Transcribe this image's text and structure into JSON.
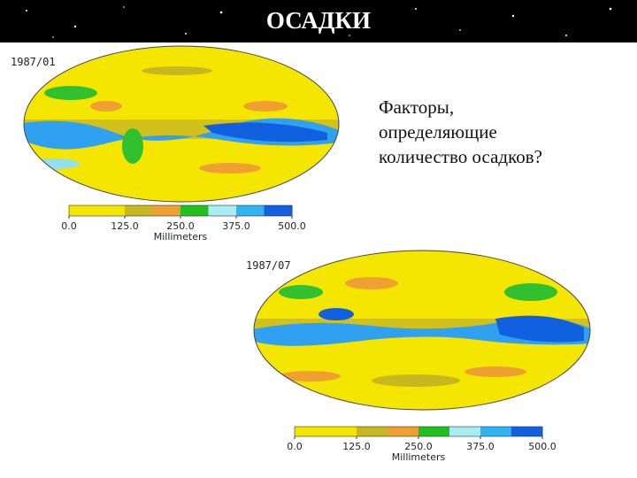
{
  "header": {
    "title": "ОСАДКИ"
  },
  "maps": [
    {
      "date": "1987/01",
      "colorbar": {
        "ticks": [
          "0.0",
          "125.0",
          "250.0",
          "375.0",
          "500.0"
        ],
        "unit": "Millimeters"
      }
    },
    {
      "date": "1987/07",
      "colorbar": {
        "ticks": [
          "0.0",
          "125.0",
          "250.0",
          "375.0",
          "500.0"
        ],
        "unit": "Millimeters"
      }
    }
  ],
  "text": {
    "lines": [
      "Факторы,",
      "определяющие",
      "количество осадков?"
    ]
  }
}
